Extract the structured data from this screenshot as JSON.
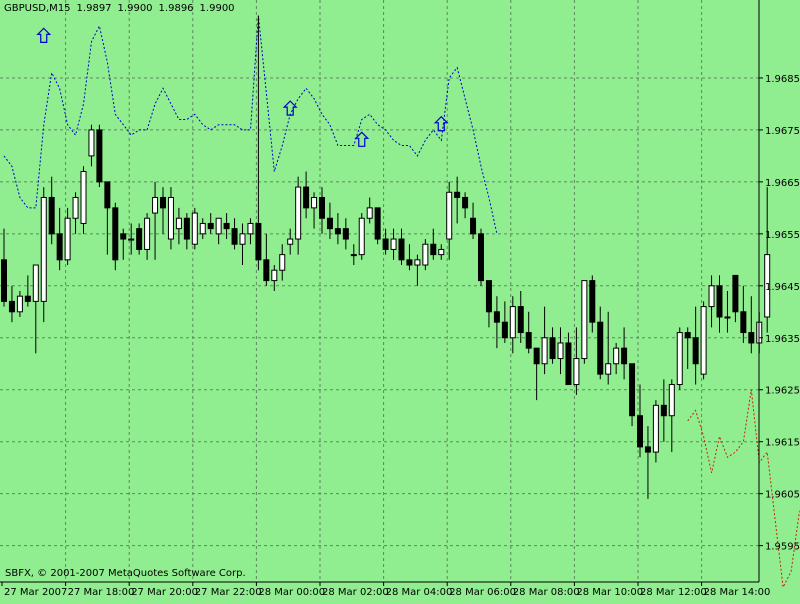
{
  "header": {
    "symbol": "GBPUSD,M15",
    "open": "1.9897",
    "high": "1.9900",
    "low": "1.9896",
    "close": "1.9900"
  },
  "copyright": "SBFX, © 2001-2007 MetaQuotes Software Corp.",
  "colors": {
    "background": "#90EE90",
    "grid": "#5a8a5a",
    "axis": "#000000",
    "bull_body": "#FFFFFF",
    "bear_body": "#000000",
    "upper_band": "#0000CD",
    "lower_band": "#CC2200",
    "arrow": "#0000CD"
  },
  "chart_data": {
    "type": "candlestick",
    "symbol": "GBPUSD",
    "timeframe": "M15",
    "ylim": [
      1.9588,
      1.97
    ],
    "y_ticks": [
      "1.9685",
      "1.9675",
      "1.9665",
      "1.9655",
      "1.9645",
      "1.9635",
      "1.9625",
      "1.9615",
      "1.9605",
      "1.9595"
    ],
    "x_ticks": [
      "27 Mar 2007",
      "27 Mar 18:00",
      "27 Mar 20:00",
      "27 Mar 22:00",
      "28 Mar 00:00",
      "28 Mar 02:00",
      "28 Mar 04:00",
      "28 Mar 06:00",
      "28 Mar 08:00",
      "28 Mar 10:00",
      "28 Mar 12:00",
      "28 Mar 14:00"
    ],
    "grid": true,
    "candles": [
      [
        1.965,
        1.9656,
        1.9641,
        1.9642
      ],
      [
        1.9642,
        1.9645,
        1.9638,
        1.964
      ],
      [
        1.964,
        1.9644,
        1.9639,
        1.9643
      ],
      [
        1.9643,
        1.9647,
        1.9641,
        1.9642
      ],
      [
        1.9642,
        1.9649,
        1.9632,
        1.9649
      ],
      [
        1.9642,
        1.9664,
        1.9638,
        1.9662
      ],
      [
        1.9662,
        1.9666,
        1.9653,
        1.9655
      ],
      [
        1.9655,
        1.966,
        1.9648,
        1.965
      ],
      [
        1.965,
        1.966,
        1.9649,
        1.9658
      ],
      [
        1.9658,
        1.9663,
        1.9655,
        1.9662
      ],
      [
        1.9657,
        1.9668,
        1.9655,
        1.9667
      ],
      [
        1.967,
        1.9676,
        1.9668,
        1.9675
      ],
      [
        1.9675,
        1.9676,
        1.9664,
        1.9665
      ],
      [
        1.9665,
        1.9665,
        1.9651,
        1.966
      ],
      [
        1.966,
        1.9661,
        1.9648,
        1.965
      ],
      [
        1.9655,
        1.9656,
        1.965,
        1.9654
      ],
      [
        1.9654,
        1.9657,
        1.9651,
        1.9654
      ],
      [
        1.9656,
        1.9657,
        1.9651,
        1.9652
      ],
      [
        1.9652,
        1.9659,
        1.965,
        1.9658
      ],
      [
        1.9659,
        1.9665,
        1.965,
        1.9662
      ],
      [
        1.9662,
        1.9664,
        1.9655,
        1.966
      ],
      [
        1.9654,
        1.9664,
        1.9652,
        1.9662
      ],
      [
        1.9656,
        1.966,
        1.9653,
        1.9658
      ],
      [
        1.9658,
        1.9659,
        1.9652,
        1.9654
      ],
      [
        1.9653,
        1.966,
        1.9652,
        1.9659
      ],
      [
        1.9655,
        1.9658,
        1.9654,
        1.9657
      ],
      [
        1.9657,
        1.9659,
        1.9655,
        1.9656
      ],
      [
        1.9655,
        1.9658,
        1.9653,
        1.9658
      ],
      [
        1.9657,
        1.9659,
        1.9654,
        1.9656
      ],
      [
        1.9656,
        1.9658,
        1.9652,
        1.9653
      ],
      [
        1.9653,
        1.9657,
        1.9649,
        1.9655
      ],
      [
        1.9655,
        1.9658,
        1.9653,
        1.9657
      ],
      [
        1.9657,
        1.9697,
        1.9648,
        1.965
      ],
      [
        1.965,
        1.9655,
        1.9645,
        1.9646
      ],
      [
        1.9646,
        1.9649,
        1.9644,
        1.9648
      ],
      [
        1.9648,
        1.9653,
        1.9646,
        1.9651
      ],
      [
        1.9653,
        1.9656,
        1.9651,
        1.9654
      ],
      [
        1.9654,
        1.9666,
        1.9651,
        1.9664
      ],
      [
        1.9664,
        1.9667,
        1.9658,
        1.966
      ],
      [
        1.966,
        1.9663,
        1.9656,
        1.9662
      ],
      [
        1.9662,
        1.9664,
        1.9655,
        1.9658
      ],
      [
        1.9658,
        1.9661,
        1.9654,
        1.9656
      ],
      [
        1.9656,
        1.9659,
        1.9653,
        1.9655
      ],
      [
        1.9656,
        1.9658,
        1.9652,
        1.9654
      ],
      [
        1.9651,
        1.9653,
        1.9649,
        1.9651
      ],
      [
        1.9651,
        1.9659,
        1.965,
        1.9658
      ],
      [
        1.9658,
        1.9662,
        1.9657,
        1.966
      ],
      [
        1.966,
        1.966,
        1.9653,
        1.9654
      ],
      [
        1.9654,
        1.9656,
        1.9651,
        1.9652
      ],
      [
        1.9652,
        1.9656,
        1.965,
        1.9654
      ],
      [
        1.9654,
        1.9656,
        1.9649,
        1.965
      ],
      [
        1.965,
        1.9653,
        1.9648,
        1.9649
      ],
      [
        1.9649,
        1.9651,
        1.9645,
        1.965
      ],
      [
        1.9649,
        1.9654,
        1.9648,
        1.9653
      ],
      [
        1.9653,
        1.9656,
        1.965,
        1.9651
      ],
      [
        1.9651,
        1.9653,
        1.965,
        1.9652
      ],
      [
        1.9654,
        1.9665,
        1.965,
        1.9663
      ],
      [
        1.9663,
        1.9666,
        1.9657,
        1.9662
      ],
      [
        1.9662,
        1.9663,
        1.9658,
        1.966
      ],
      [
        1.9658,
        1.9661,
        1.9654,
        1.9655
      ],
      [
        1.9655,
        1.9656,
        1.9645,
        1.9646
      ],
      [
        1.9646,
        1.9646,
        1.9637,
        1.964
      ],
      [
        1.964,
        1.9643,
        1.9633,
        1.9638
      ],
      [
        1.9638,
        1.9642,
        1.9634,
        1.9635
      ],
      [
        1.9635,
        1.9643,
        1.9632,
        1.9641
      ],
      [
        1.9641,
        1.9644,
        1.9634,
        1.9636
      ],
      [
        1.9636,
        1.964,
        1.9632,
        1.9633
      ],
      [
        1.9633,
        1.9633,
        1.9623,
        1.963
      ],
      [
        1.963,
        1.9641,
        1.9628,
        1.9635
      ],
      [
        1.9635,
        1.9637,
        1.963,
        1.9631
      ],
      [
        1.9631,
        1.9637,
        1.9628,
        1.9634
      ],
      [
        1.9634,
        1.9636,
        1.9626,
        1.9626
      ],
      [
        1.9626,
        1.9637,
        1.9624,
        1.9631
      ],
      [
        1.9631,
        1.9646,
        1.963,
        1.9646
      ],
      [
        1.9646,
        1.9647,
        1.9636,
        1.9638
      ],
      [
        1.9638,
        1.9641,
        1.9627,
        1.9628
      ],
      [
        1.9628,
        1.964,
        1.9626,
        1.963
      ],
      [
        1.963,
        1.9634,
        1.9628,
        1.9633
      ],
      [
        1.9633,
        1.9637,
        1.9627,
        1.963
      ],
      [
        1.963,
        1.963,
        1.9618,
        1.962
      ],
      [
        1.962,
        1.9626,
        1.9612,
        1.9614
      ],
      [
        1.9614,
        1.9618,
        1.9604,
        1.9613
      ],
      [
        1.9613,
        1.9623,
        1.9611,
        1.9622
      ],
      [
        1.9622,
        1.9627,
        1.9615,
        1.962
      ],
      [
        1.962,
        1.9627,
        1.9613,
        1.9626
      ],
      [
        1.9626,
        1.9637,
        1.9625,
        1.9636
      ],
      [
        1.9636,
        1.9637,
        1.9629,
        1.9635
      ],
      [
        1.9635,
        1.9641,
        1.9626,
        1.963
      ],
      [
        1.9628,
        1.9642,
        1.9627,
        1.9641
      ],
      [
        1.9641,
        1.9647,
        1.9637,
        1.9645
      ],
      [
        1.9645,
        1.9647,
        1.9636,
        1.9639
      ],
      [
        1.9639,
        1.9644,
        1.9636,
        1.9639
      ],
      [
        1.9647,
        1.9647,
        1.9638,
        1.964
      ],
      [
        1.964,
        1.9645,
        1.9634,
        1.9636
      ],
      [
        1.9636,
        1.9643,
        1.9632,
        1.9634
      ],
      [
        1.9634,
        1.964,
        1.9632,
        1.9638
      ],
      [
        1.9639,
        1.9664,
        1.9636,
        1.9651
      ]
    ],
    "upper_band": [
      1.967,
      1.9668,
      1.9662,
      1.966,
      1.966,
      1.9676,
      1.9686,
      1.9683,
      1.9676,
      1.9674,
      1.968,
      1.9692,
      1.9695,
      1.9688,
      1.9678,
      1.9676,
      1.9674,
      1.9675,
      1.9675,
      1.968,
      1.9683,
      1.968,
      1.9677,
      1.9677,
      1.9678,
      1.9676,
      1.9675,
      1.9676,
      1.9676,
      1.9676,
      1.9675,
      1.9675,
      1.9697,
      1.9682,
      1.9667,
      1.9672,
      1.9678,
      1.9681,
      1.9683,
      1.9681,
      1.9678,
      1.9676,
      1.9672,
      1.9672,
      1.9672,
      1.9677,
      1.9678,
      1.9676,
      1.9675,
      1.9673,
      1.9672,
      1.9672,
      1.967,
      1.9673,
      1.9675,
      1.9673,
      1.9685,
      1.9687,
      1.9681,
      1.9675,
      1.9668,
      1.9662,
      1.9655
    ],
    "lower_band_start": 86,
    "lower_band": [
      1.9619,
      1.9621,
      1.9616,
      1.9609,
      1.9616,
      1.9612,
      1.9613,
      1.9615,
      1.9625,
      1.9611,
      1.9613,
      1.96,
      1.9587,
      1.959,
      1.9601,
      1.9606,
      1.9615,
      1.962,
      1.9611,
      1.9612,
      1.9626,
      1.9622,
      1.9619,
      1.9618,
      1.962,
      1.9619,
      1.9618,
      1.9621,
      1.962,
      1.9621
    ],
    "arrows": [
      {
        "index": 5,
        "price": 1.9693
      },
      {
        "index": 36,
        "price": 1.9679
      },
      {
        "index": 45,
        "price": 1.9673
      },
      {
        "index": 55,
        "price": 1.9676
      }
    ]
  }
}
